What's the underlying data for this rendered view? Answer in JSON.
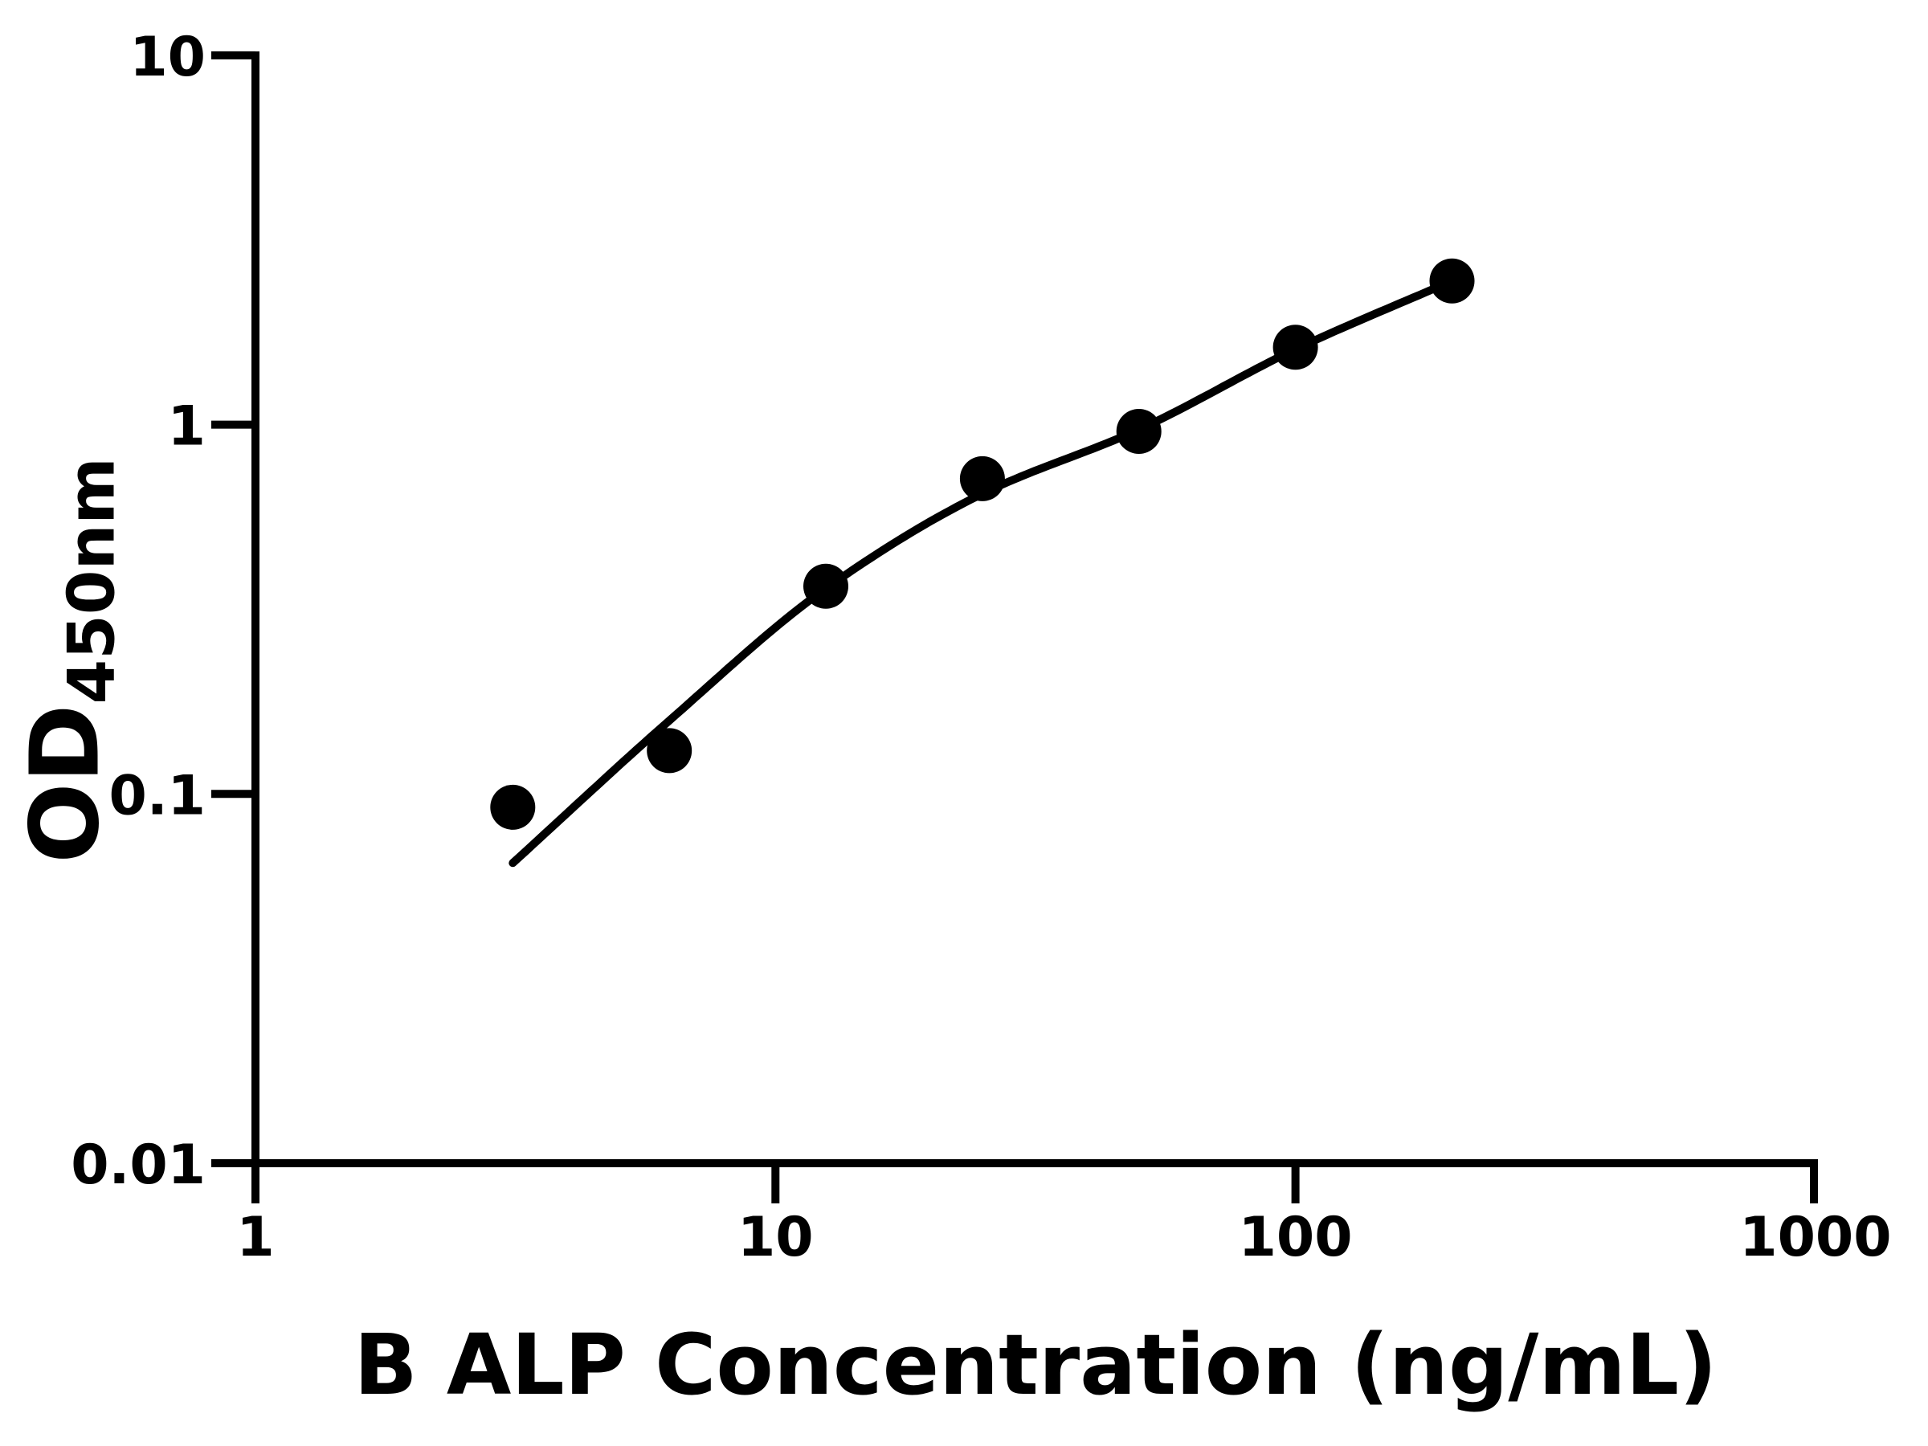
{
  "page": {
    "background_color": "#ffffff",
    "foreground_color": "#000000"
  },
  "chart_data": {
    "type": "scatter",
    "title": "",
    "xlabel": "B ALP Concentration (ng/mL)",
    "ylabel": "OD",
    "ylabel_subscript": "450nm",
    "x_scale": "log",
    "y_scale": "log",
    "xlim": [
      1,
      1000
    ],
    "ylim": [
      0.01,
      10
    ],
    "grid": false,
    "legend": "none",
    "axes_color": "#000000",
    "x_ticks": [
      {
        "value": 1,
        "label": "1"
      },
      {
        "value": 10,
        "label": "10"
      },
      {
        "value": 100,
        "label": "100"
      },
      {
        "value": 1000,
        "label": "1000"
      }
    ],
    "y_ticks": [
      {
        "value": 10,
        "label": "10"
      },
      {
        "value": 1,
        "label": "1"
      },
      {
        "value": 0.1,
        "label": "0.1"
      },
      {
        "value": 0.01,
        "label": "0.01"
      }
    ],
    "series": [
      {
        "name": "standard-data-points",
        "type": "scatter",
        "marker": "circle",
        "marker_color": "#000000",
        "x": [
          3.125,
          6.25,
          12.5,
          25,
          50,
          100,
          200
        ],
        "y": [
          0.092,
          0.131,
          0.365,
          0.714,
          0.959,
          1.62,
          2.45
        ]
      },
      {
        "name": "fit-curve",
        "type": "line",
        "line_color": "#000000",
        "x": [
          3.125,
          6.25,
          12.5,
          25,
          50,
          100,
          200
        ],
        "y": [
          0.065,
          0.158,
          0.36,
          0.65,
          0.97,
          1.6,
          2.45
        ]
      }
    ]
  }
}
